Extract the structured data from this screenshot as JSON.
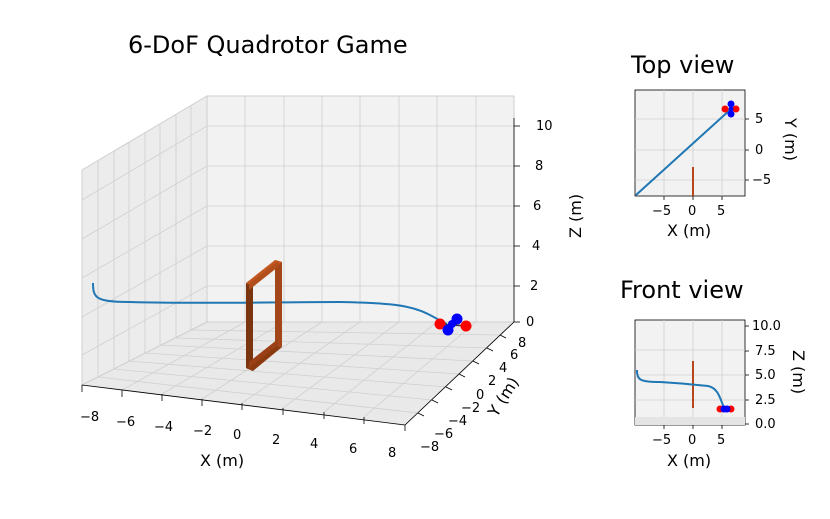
{
  "main": {
    "title": "6-DoF Quadrotor Game",
    "x_label": "X (m)",
    "y_label": "Y (m)",
    "z_label": "Z (m)",
    "x_ticks": [
      "−8",
      "−6",
      "−4",
      "−2",
      "0",
      "2",
      "4",
      "6",
      "8"
    ],
    "y_ticks": [
      "−8",
      "−6",
      "−4",
      "−2",
      "0",
      "2",
      "4",
      "6",
      "8"
    ],
    "z_ticks": [
      "0",
      "2",
      "4",
      "6",
      "8",
      "10"
    ]
  },
  "top_view": {
    "title": "Top view",
    "x_label": "X (m)",
    "y_label": "Y (m)",
    "x_ticks": [
      "−5",
      "0",
      "5"
    ],
    "y_ticks": [
      "5",
      "0",
      "−5"
    ]
  },
  "front_view": {
    "title": "Front view",
    "x_label": "X (m)",
    "z_label": "Z (m)",
    "x_ticks": [
      "−5",
      "0",
      "5"
    ],
    "z_ticks": [
      "10.0",
      "7.5",
      "5.0",
      "2.5",
      "0.0"
    ]
  },
  "colors": {
    "trajectory": "#1f77b4",
    "gate": "#8b3a0f",
    "gate_highlight": "#c2571f",
    "rotor_a": "#ff0000",
    "rotor_b": "#0000ff",
    "pane": "#f2f2f2",
    "grid": "#cfcfcf"
  }
}
